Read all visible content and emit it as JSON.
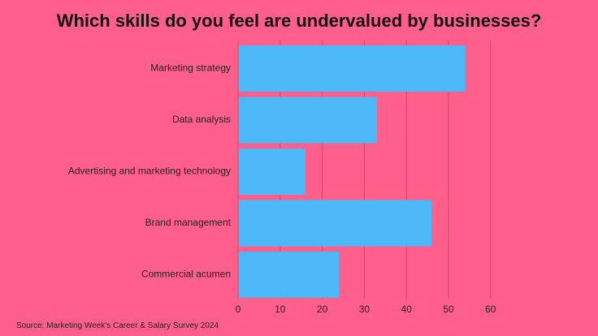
{
  "title": "Which skills do you feel are undervalued by businesses?",
  "source": "Source: Marketing Week's Career & Salary Survey 2024",
  "colors": {
    "background": "#ff5f8a",
    "bar": "#4db8f8",
    "grid": "#d9436b",
    "text": "#222222"
  },
  "chart_data": {
    "type": "bar",
    "orientation": "horizontal",
    "categories": [
      "Marketing strategy",
      "Data analysis",
      "Advertising and marketing technology",
      "Brand management",
      "Commercial acumen"
    ],
    "values": [
      54,
      33,
      16,
      46,
      24
    ],
    "xlim": [
      0,
      60
    ],
    "xticks": [
      "0",
      "10",
      "20",
      "30",
      "40",
      "50",
      "60"
    ],
    "grid": true,
    "title": "Which skills do you feel are undervalued by businesses?",
    "xlabel": "",
    "ylabel": ""
  }
}
